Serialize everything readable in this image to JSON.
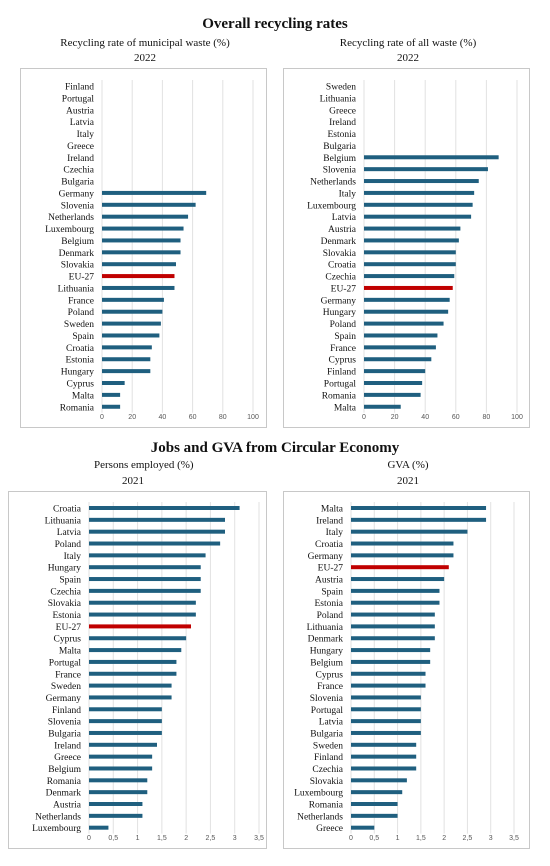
{
  "section1_title": "Overall recycling rates",
  "section2_title": "Jobs and GVA from Circular Economy",
  "colors": {
    "bar": "#1f5f7f",
    "highlight": "#c00000",
    "grid": "#e2e2e2",
    "border": "#c8c8c8"
  },
  "chart_data": [
    {
      "type": "bar",
      "orientation": "horizontal",
      "title": "Recycling rate of municipal waste (%)",
      "subtitle": "2022",
      "categories": [
        "Finland",
        "Portugal",
        "Austria",
        "Latvia",
        "Italy",
        "Greece",
        "Ireland",
        "Czechia",
        "Bulgaria",
        "Germany",
        "Slovenia",
        "Netherlands",
        "Luxembourg",
        "Belgium",
        "Denmark",
        "Slovakia",
        "EU-27",
        "Lithuania",
        "France",
        "Poland",
        "Sweden",
        "Spain",
        "Croatia",
        "Estonia",
        "Hungary",
        "Cyprus",
        "Malta",
        "Romania"
      ],
      "values": [
        null,
        null,
        null,
        null,
        null,
        null,
        null,
        null,
        null,
        69,
        62,
        57,
        54,
        52,
        52,
        49,
        48,
        48,
        41,
        40,
        39,
        38,
        33,
        32,
        32,
        15,
        12,
        12
      ],
      "highlight": "EU-27",
      "xlim": [
        0,
        100
      ],
      "xticks": [
        "0",
        "20",
        "40",
        "60",
        "80",
        "100"
      ],
      "grid": true
    },
    {
      "type": "bar",
      "orientation": "horizontal",
      "title": "Recycling rate of all waste (%)",
      "subtitle": "2022",
      "categories": [
        "Sweden",
        "Lithuania",
        "Greece",
        "Ireland",
        "Estonia",
        "Bulgaria",
        "Belgium",
        "Slovenia",
        "Netherlands",
        "Italy",
        "Luxembourg",
        "Latvia",
        "Austria",
        "Denmark",
        "Slovakia",
        "Croatia",
        "Czechia",
        "EU-27",
        "Germany",
        "Hungary",
        "Poland",
        "Spain",
        "France",
        "Cyprus",
        "Finland",
        "Portugal",
        "Romania",
        "Malta"
      ],
      "values": [
        null,
        null,
        null,
        null,
        null,
        null,
        88,
        81,
        75,
        72,
        71,
        70,
        63,
        62,
        60,
        60,
        59,
        58,
        56,
        55,
        52,
        48,
        47,
        44,
        40,
        38,
        37,
        24
      ],
      "highlight": "EU-27",
      "xlim": [
        0,
        100
      ],
      "xticks": [
        "0",
        "20",
        "40",
        "60",
        "80",
        "100"
      ],
      "grid": true
    },
    {
      "type": "bar",
      "orientation": "horizontal",
      "title": "Persons employed (%)",
      "subtitle": "2021",
      "categories": [
        "Croatia",
        "Lithuania",
        "Latvia",
        "Poland",
        "Italy",
        "Hungary",
        "Spain",
        "Czechia",
        "Slovakia",
        "Estonia",
        "EU-27",
        "Cyprus",
        "Malta",
        "Portugal",
        "France",
        "Sweden",
        "Germany",
        "Finland",
        "Slovenia",
        "Bulgaria",
        "Ireland",
        "Greece",
        "Belgium",
        "Romania",
        "Denmark",
        "Austria",
        "Netherlands",
        "Luxembourg"
      ],
      "values": [
        3.1,
        2.8,
        2.8,
        2.7,
        2.4,
        2.3,
        2.3,
        2.3,
        2.2,
        2.2,
        2.1,
        2.0,
        1.9,
        1.8,
        1.8,
        1.7,
        1.7,
        1.5,
        1.5,
        1.5,
        1.4,
        1.3,
        1.3,
        1.2,
        1.2,
        1.1,
        1.1,
        0.4
      ],
      "highlight": "EU-27",
      "xlim": [
        0,
        3.5
      ],
      "xticks": [
        "0",
        "0,5",
        "1",
        "1,5",
        "2",
        "2,5",
        "3",
        "3,5"
      ],
      "grid": true
    },
    {
      "type": "bar",
      "orientation": "horizontal",
      "title": "GVA (%)",
      "subtitle": "2021",
      "categories": [
        "Malta",
        "Ireland",
        "Italy",
        "Croatia",
        "Germany",
        "EU-27",
        "Austria",
        "Spain",
        "Estonia",
        "Poland",
        "Lithuania",
        "Denmark",
        "Hungary",
        "Belgium",
        "Cyprus",
        "France",
        "Slovenia",
        "Portugal",
        "Latvia",
        "Bulgaria",
        "Sweden",
        "Finland",
        "Czechia",
        "Slovakia",
        "Luxembourg",
        "Romania",
        "Netherlands",
        "Greece"
      ],
      "values": [
        2.9,
        2.9,
        2.5,
        2.2,
        2.2,
        2.1,
        2.0,
        1.9,
        1.9,
        1.8,
        1.8,
        1.8,
        1.7,
        1.7,
        1.6,
        1.6,
        1.5,
        1.5,
        1.5,
        1.5,
        1.4,
        1.4,
        1.4,
        1.2,
        1.1,
        1.0,
        1.0,
        0.5
      ],
      "highlight": "EU-27",
      "xlim": [
        0,
        3.5
      ],
      "xticks": [
        "0",
        "0,5",
        "1",
        "1,5",
        "2",
        "2,5",
        "3",
        "3,5"
      ],
      "grid": true
    }
  ]
}
